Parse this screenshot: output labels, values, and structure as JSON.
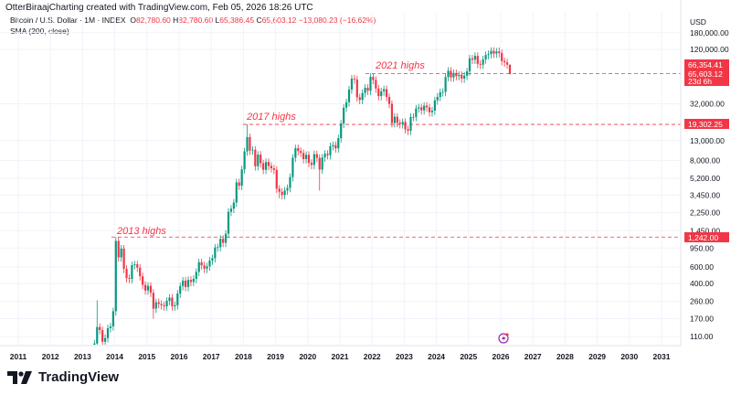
{
  "header": {
    "caption": "OtterBiraajCharting created with TradingView.com, Feb 05, 2026 18:26 UTC"
  },
  "legend": {
    "symbol": "Bitcoin / U.S. Dollar · 1M · INDEX",
    "o_label": "O",
    "o": "82,780.60",
    "h_label": "H",
    "h": "82,780.60",
    "l_label": "L",
    "l": "65,386.45",
    "c_label": "C",
    "c": "65,603.12",
    "change": "−13,080.23 (−16.62%)",
    "indicator": "SMA (200, close)"
  },
  "price_axis": {
    "currency": "USD",
    "ticks": [
      "180,000.00",
      "120,000.00",
      "32,000.00",
      "13,000.00",
      "8,000.00",
      "5,200.00",
      "3,450.00",
      "2,250.00",
      "1,450.00",
      "950.00",
      "600.00",
      "400.00",
      "260.00",
      "170.00",
      "110.00"
    ],
    "tick_values": [
      180000,
      120000,
      32000,
      13000,
      8000,
      5200,
      3450,
      2250,
      1450,
      950,
      600,
      400,
      260,
      170,
      110
    ],
    "scale": "log",
    "labels": {
      "level_2021": "66,354.41",
      "last_price": "65,603.12",
      "countdown": "23d 6h",
      "level_2017": "19,302.25",
      "level_2013": "1,242.00"
    }
  },
  "time_axis": {
    "ticks": [
      "2011",
      "2012",
      "2013",
      "2014",
      "2015",
      "2016",
      "2017",
      "2018",
      "2019",
      "2020",
      "2021",
      "2022",
      "2023",
      "2024",
      "2025",
      "2026",
      "2027",
      "2028",
      "2029",
      "2030",
      "2031"
    ]
  },
  "annotations": {
    "h2013": "2013 highs",
    "h2017": "2017 highs",
    "h2021": "2021 highs"
  },
  "colors": {
    "up": "#089981",
    "down": "#f23645",
    "line": "#f23645",
    "grid": "#f0f3fa"
  },
  "chart_data": {
    "type": "candlestick",
    "interval": "1M",
    "start": "2013-01",
    "first_open": 13.5,
    "closes": [
      20,
      33,
      93,
      139,
      129,
      97,
      106,
      135,
      141,
      204,
      1130,
      757,
      938,
      573,
      457,
      448,
      627,
      640,
      589,
      478,
      387,
      338,
      378,
      320,
      217,
      254,
      244,
      236,
      230,
      263,
      284,
      230,
      236,
      314,
      377,
      430,
      368,
      437,
      416,
      448,
      531,
      673,
      624,
      575,
      609,
      700,
      742,
      964,
      970,
      1190,
      1080,
      1348,
      2300,
      2480,
      2875,
      4703,
      4338,
      6468,
      10000,
      14156,
      10221,
      10397,
      6973,
      9240,
      7494,
      6391,
      7729,
      7033,
      6626,
      6371,
      4040,
      3742,
      3457,
      3854,
      4105,
      5350,
      8574,
      10817,
      10085,
      9630,
      8293,
      9199,
      7569,
      7193,
      9350,
      8544,
      6424,
      8629,
      9454,
      9135,
      11351,
      11655,
      10779,
      13804,
      19700,
      28990,
      33114,
      45137,
      58918,
      57750,
      37332,
      35040,
      41461,
      47100,
      43790,
      61318,
      57005,
      46306,
      38483,
      43193,
      45538,
      37644,
      31792,
      19942,
      23293,
      20050,
      19423,
      20495,
      17168,
      16548,
      23139,
      23147,
      28478,
      29268,
      27219,
      30477,
      29232,
      25940,
      26962,
      34639,
      37712,
      42265,
      42580,
      61130,
      71280,
      60636,
      67491,
      62678,
      64619,
      58970,
      63301,
      70215,
      96407,
      93429,
      102430,
      84350,
      82550,
      94200,
      104600,
      107100,
      115750,
      108250,
      114050,
      109600,
      90400,
      87600,
      82780.6,
      65603.12
    ],
    "notable_highs": {
      "2013-04": 266,
      "2013-11": 1242,
      "2017-12": 19302,
      "2021-11": 66354,
      "2025-10": 126000,
      "2026-02": 82780.6
    },
    "notable_lows": {
      "2026-02": 65386.45,
      "2015-01": 170,
      "2018-12": 3200,
      "2020-03": 3850,
      "2022-11": 15500
    },
    "levels": [
      1242,
      19302.25,
      66354.41
    ]
  }
}
